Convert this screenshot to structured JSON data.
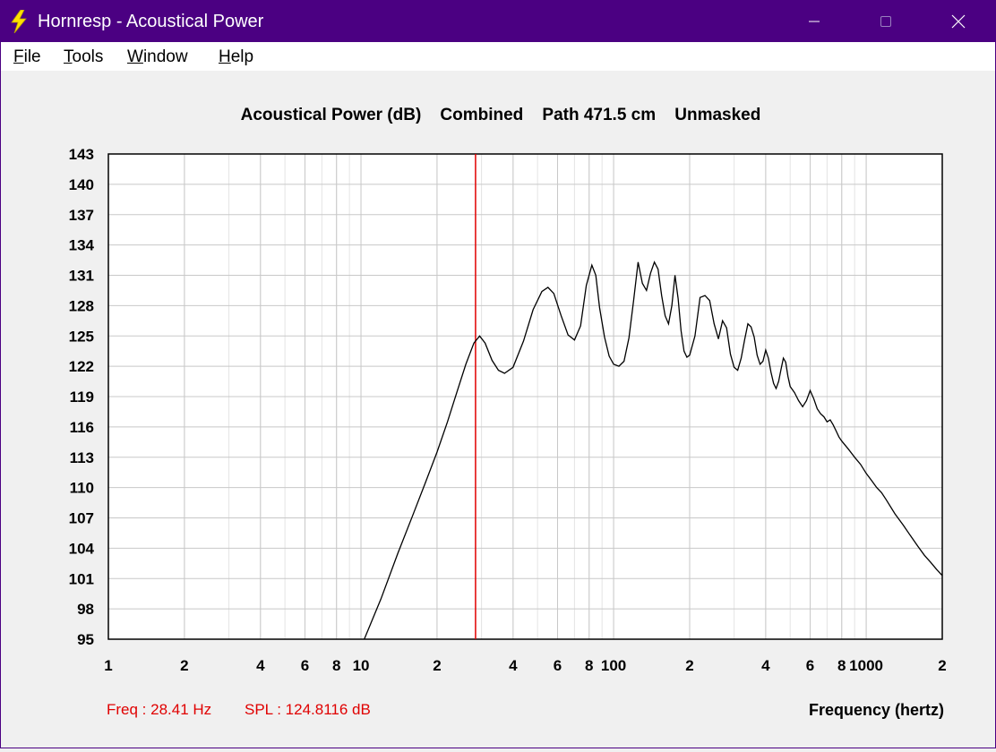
{
  "window": {
    "title": "Hornresp - Acoustical Power",
    "title_bar_color": "#4b0082"
  },
  "menu": {
    "items": [
      {
        "label": "File",
        "mnemonic": "F",
        "rest": "ile"
      },
      {
        "label": "Tools",
        "mnemonic": "T",
        "rest": "ools"
      },
      {
        "label": "Window",
        "mnemonic": "W",
        "rest": "indow"
      },
      {
        "label": "Help",
        "mnemonic": "H",
        "rest": "elp"
      }
    ]
  },
  "chart_data": {
    "type": "line",
    "title": "Acoustical Power (dB)    Combined    Path 471.5 cm    Unmasked",
    "xlabel": "Frequency (hertz)",
    "ylabel": "",
    "x_scale": "log",
    "xlim": [
      1,
      2000
    ],
    "ylim": [
      95,
      143
    ],
    "x_tick_labels": [
      {
        "value": 1,
        "label": "1"
      },
      {
        "value": 2,
        "label": "2"
      },
      {
        "value": 4,
        "label": "4"
      },
      {
        "value": 6,
        "label": "6"
      },
      {
        "value": 8,
        "label": "8"
      },
      {
        "value": 10,
        "label": "10"
      },
      {
        "value": 20,
        "label": "2"
      },
      {
        "value": 40,
        "label": "4"
      },
      {
        "value": 60,
        "label": "6"
      },
      {
        "value": 80,
        "label": "8"
      },
      {
        "value": 100,
        "label": "100"
      },
      {
        "value": 200,
        "label": "2"
      },
      {
        "value": 400,
        "label": "4"
      },
      {
        "value": 600,
        "label": "6"
      },
      {
        "value": 800,
        "label": "8"
      },
      {
        "value": 1000,
        "label": "1000"
      },
      {
        "value": 2000,
        "label": "2"
      }
    ],
    "y_ticks": [
      95,
      98,
      101,
      104,
      107,
      110,
      113,
      116,
      119,
      122,
      125,
      128,
      131,
      134,
      137,
      140,
      143
    ],
    "grid": true,
    "line_color": "#000000",
    "marker_color": "#e00000",
    "cursor": {
      "frequency": 28.41
    },
    "series": [
      {
        "x": [
          10.3,
          12,
          14,
          16,
          18,
          20,
          22,
          24,
          26,
          28,
          29.5,
          31,
          33,
          35,
          37,
          40,
          44,
          48,
          52,
          55,
          58,
          62,
          66,
          70,
          74,
          78,
          82,
          85,
          88,
          92,
          96,
          100,
          105,
          110,
          115,
          120,
          125,
          130,
          135,
          140,
          145,
          150,
          155,
          160,
          165,
          170,
          175,
          180,
          185,
          190,
          195,
          200,
          210,
          220,
          230,
          240,
          250,
          260,
          270,
          280,
          290,
          300,
          310,
          320,
          330,
          340,
          350,
          360,
          370,
          380,
          390,
          400,
          410,
          420,
          430,
          440,
          450,
          460,
          470,
          480,
          490,
          500,
          520,
          540,
          560,
          580,
          600,
          620,
          640,
          660,
          680,
          700,
          720,
          740,
          760,
          780,
          800,
          850,
          900,
          950,
          1000,
          1050,
          1100,
          1150,
          1200,
          1300,
          1400,
          1500,
          1600,
          1700,
          1800,
          1900,
          2000
        ],
        "y": [
          95.0,
          99.0,
          103.5,
          107.2,
          110.5,
          113.5,
          116.5,
          119.5,
          122.2,
          124.3,
          125.0,
          124.3,
          122.6,
          121.6,
          121.3,
          121.9,
          124.5,
          127.6,
          129.4,
          129.8,
          129.2,
          127.0,
          125.1,
          124.6,
          126.0,
          130.0,
          132.0,
          131.0,
          127.8,
          124.9,
          123.0,
          122.2,
          122.0,
          122.5,
          124.8,
          128.5,
          132.3,
          130.2,
          129.5,
          131.2,
          132.3,
          131.6,
          129.0,
          127.0,
          126.2,
          128.0,
          131.0,
          128.7,
          125.5,
          123.5,
          122.9,
          123.1,
          125.0,
          128.8,
          129.0,
          128.5,
          126.2,
          124.7,
          126.5,
          125.8,
          123.2,
          121.9,
          121.6,
          122.8,
          124.6,
          126.2,
          125.9,
          124.9,
          123.1,
          122.2,
          122.5,
          123.6,
          122.8,
          121.4,
          120.3,
          119.8,
          120.5,
          121.7,
          122.8,
          122.4,
          121.0,
          120.0,
          119.4,
          118.6,
          118.0,
          118.6,
          119.6,
          118.8,
          117.8,
          117.3,
          117.0,
          116.5,
          116.7,
          116.2,
          115.6,
          115.0,
          114.6,
          113.8,
          113.0,
          112.3,
          111.4,
          110.7,
          110.0,
          109.5,
          108.8,
          107.4,
          106.3,
          105.2,
          104.2,
          103.3,
          102.6,
          101.9,
          101.3
        ]
      }
    ]
  },
  "readout": {
    "freq_text": "Freq : 28.41 Hz",
    "spl_text": "SPL : 124.8116 dB",
    "color": "#e00000"
  }
}
